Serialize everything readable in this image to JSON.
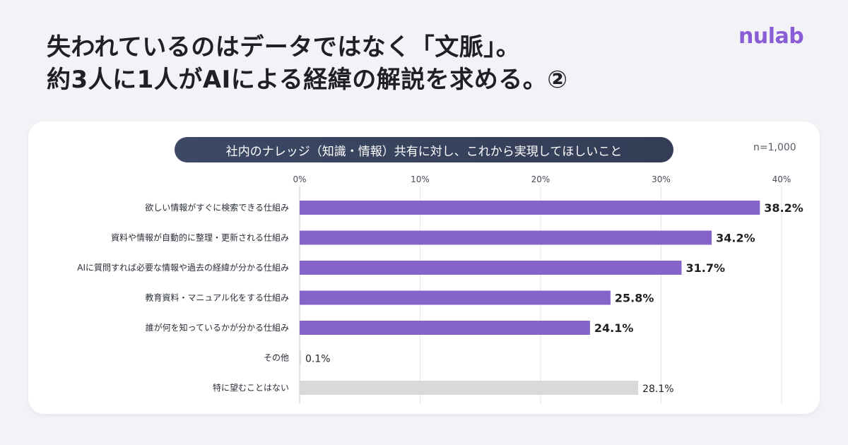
{
  "headline": {
    "line1": "失われているのはデータではなく「文脈」。",
    "line2": "約3人に1人がAIによる経緯の解説を求める。②"
  },
  "logo": {
    "text": "nulab",
    "color": "#8a5cd6"
  },
  "chart_header": {
    "title": "社内のナレッジ（知識・情報）共有に対し、これから実現してほしいこと",
    "sample_size": "n=1,000"
  },
  "chart_data": {
    "type": "bar",
    "orientation": "horizontal",
    "title": "社内のナレッジ（知識・情報）共有に対し、これから実現してほしいこと",
    "xlim": [
      0,
      40
    ],
    "x_ticks": [
      "0%",
      "10%",
      "20%",
      "30%",
      "40%"
    ],
    "grid": true,
    "categories": [
      "欲しい情報がすぐに検索できる仕組み",
      "資料や情報が自動的に整理・更新される仕組み",
      "AIに質問すれば必要な情報や過去の経緯が分かる仕組み",
      "教育資料・マニュアル化をする仕組み",
      "誰が何を知っているかが分かる仕組み",
      "その他",
      "特に望むことはない"
    ],
    "values": [
      38.2,
      34.2,
      31.7,
      25.8,
      24.1,
      0.1,
      28.1
    ],
    "value_labels": [
      "38.2%",
      "34.2%",
      "31.7%",
      "25.8%",
      "24.1%",
      "0.1%",
      "28.1%"
    ],
    "bar_colors": [
      "#8563c9",
      "#8563c9",
      "#8563c9",
      "#8563c9",
      "#8563c9",
      "#d9d9dc",
      "#d9d9dc"
    ],
    "emphasized": [
      true,
      true,
      true,
      true,
      true,
      false,
      false
    ]
  }
}
